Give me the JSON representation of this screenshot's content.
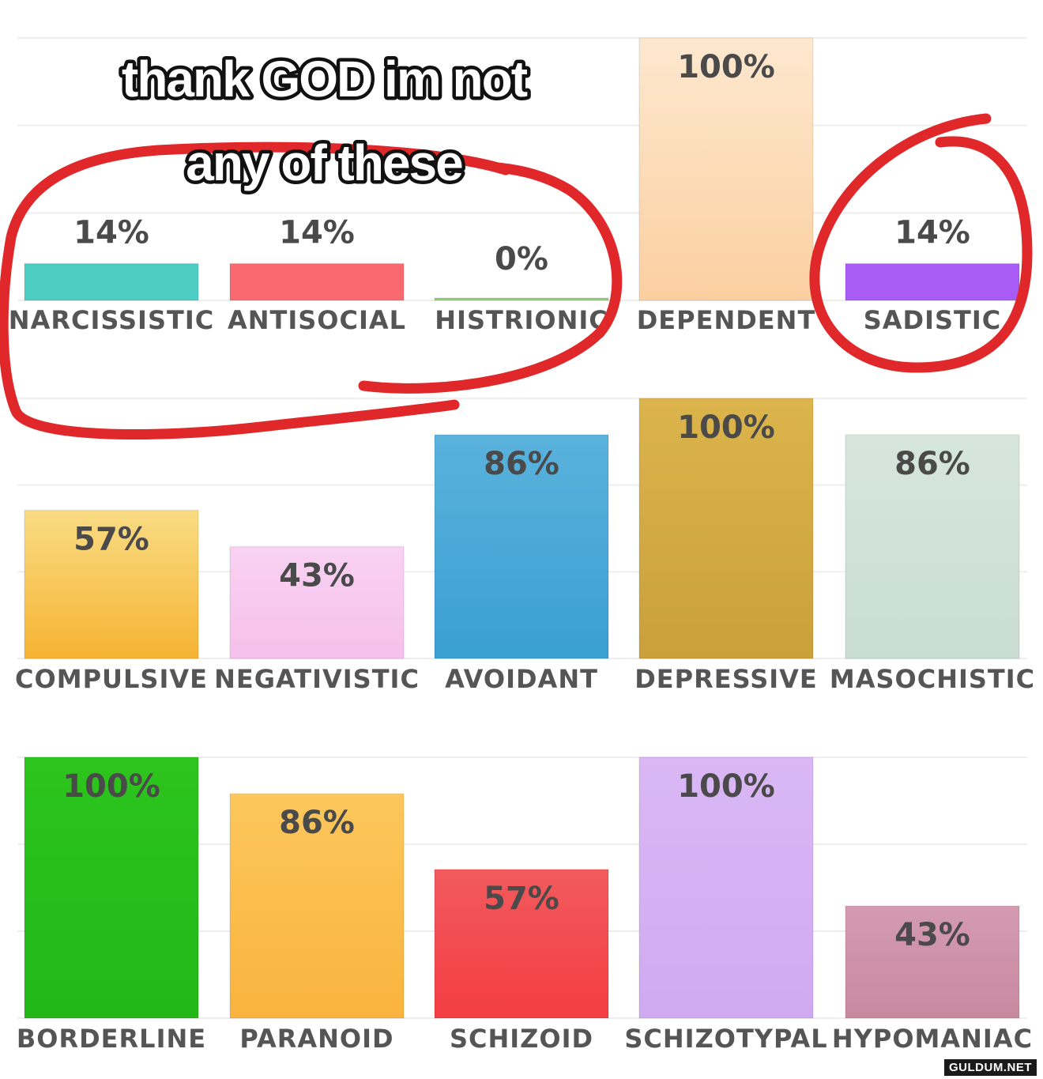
{
  "caption": {
    "line1": "thank GOD im not",
    "line2": "any of these"
  },
  "watermark": "GULDUM.NET",
  "chart_data": [
    {
      "type": "bar",
      "categories": [
        "NARCISSISTIC",
        "ANTISOCIAL",
        "HISTRIONIC",
        "DEPENDENT",
        "SADISTIC"
      ],
      "values": [
        14,
        14,
        0,
        100,
        14
      ],
      "labels": [
        "14%",
        "14%",
        "0%",
        "100%",
        "14%"
      ],
      "colors": [
        "#4ecdc4",
        "#f86a6f",
        "#8fd46f",
        "#fddcb5",
        "#a95cf5"
      ],
      "ylim": [
        0,
        100
      ],
      "grid": true
    },
    {
      "type": "bar",
      "categories": [
        "COMPULSIVE",
        "NEGATIVISTIC",
        "AVOIDANT",
        "DEPRESSIVE",
        "MASOCHISTIC"
      ],
      "values": [
        57,
        43,
        86,
        100,
        86
      ],
      "labels": [
        "57%",
        "43%",
        "86%",
        "100%",
        "86%"
      ],
      "colors": [
        "#f7bb3f",
        "#f8c6ee",
        "#42a6d6",
        "#cfa53f",
        "#cfe2da"
      ],
      "ylim": [
        0,
        100
      ],
      "grid": true
    },
    {
      "type": "bar",
      "categories": [
        "BORDERLINE",
        "PARANOID",
        "SCHIZOID",
        "SCHIZOTYPAL",
        "HYPOMANIAC"
      ],
      "values": [
        100,
        86,
        57,
        100,
        43
      ],
      "labels": [
        "100%",
        "86%",
        "57%",
        "100%",
        "43%"
      ],
      "colors": [
        "#27c01b",
        "#fbbb4a",
        "#f34b4f",
        "#d5b0f3",
        "#cd8fa5"
      ],
      "ylim": [
        0,
        100
      ],
      "grid": true
    }
  ],
  "annotations": {
    "circle_color": "#e0282a",
    "circled_groups": [
      [
        "NARCISSISTIC",
        "ANTISOCIAL",
        "HISTRIONIC"
      ],
      [
        "SADISTIC"
      ]
    ]
  }
}
